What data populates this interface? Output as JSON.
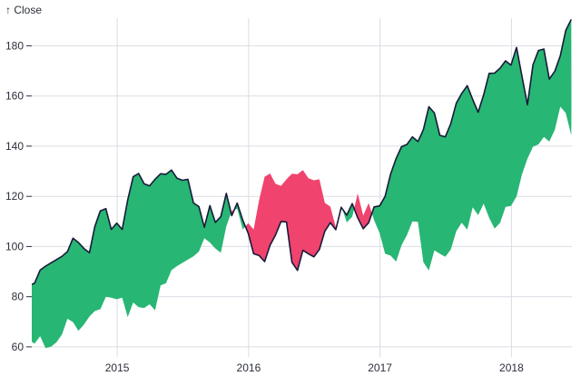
{
  "chart_data": {
    "type": "area",
    "subtype": "difference",
    "title": "",
    "ylabel": "↑ Close",
    "series_name": "Close",
    "baseline": "Close one year earlier (lagged series)",
    "grid": true,
    "legend": false,
    "colors": {
      "positive": "#27b673",
      "negative": "#f0436e",
      "line": "#171a39",
      "grid": "#d9dde3",
      "tick_text": "#2b2f3a"
    },
    "x_start_year": 2013.33,
    "x_interval_years": 0.0416667,
    "lag_points": 24,
    "xlim": [
      2014.35,
      2018.46
    ],
    "ylim": [
      56,
      191
    ],
    "x_ticks": [
      2015,
      2016,
      2017,
      2018
    ],
    "y_ticks": [
      60,
      80,
      100,
      120,
      140,
      160,
      180
    ],
    "close": [
      62.7,
      61.3,
      64.3,
      59.5,
      60.1,
      61.9,
      65.0,
      71.2,
      69.9,
      66.4,
      68.9,
      72.1,
      74.3,
      75.0,
      80.0,
      79.6,
      79.0,
      79.6,
      71.9,
      77.7,
      75.8,
      75.5,
      77.0,
      74.6,
      84.5,
      85.4,
      90.6,
      92.2,
      93.5,
      94.8,
      96.1,
      98.0,
      103.3,
      101.6,
      99.2,
      97.5,
      108.0,
      114.2,
      115.1,
      106.8,
      109.3,
      106.8,
      118.6,
      127.8,
      129.1,
      125.0,
      124.2,
      126.8,
      129.0,
      128.8,
      130.5,
      127.2,
      126.4,
      126.8,
      117.4,
      115.9,
      107.7,
      116.3,
      109.6,
      111.9,
      121.2,
      112.3,
      117.3,
      110.5,
      105.3,
      97.1,
      96.4,
      94.0,
      100.5,
      104.6,
      110.0,
      109.8,
      93.7,
      90.5,
      98.5,
      97.1,
      95.9,
      98.8,
      106.1,
      109.5,
      106.7,
      115.6,
      112.5,
      117.1,
      111.5,
      107.1,
      109.5,
      115.8,
      116.2,
      120.0,
      128.8,
      135.0,
      139.8,
      140.7,
      143.7,
      141.8,
      146.6,
      155.7,
      153.2,
      144.3,
      143.7,
      149.0,
      157.1,
      161.0,
      164.1,
      158.6,
      153.5,
      160.5,
      169.0,
      169.1,
      171.1,
      174.0,
      172.3,
      179.3,
      167.8,
      156.5,
      172.4,
      178.1,
      178.7,
      166.7,
      169.9,
      176.0,
      186.1,
      190.5
    ]
  }
}
